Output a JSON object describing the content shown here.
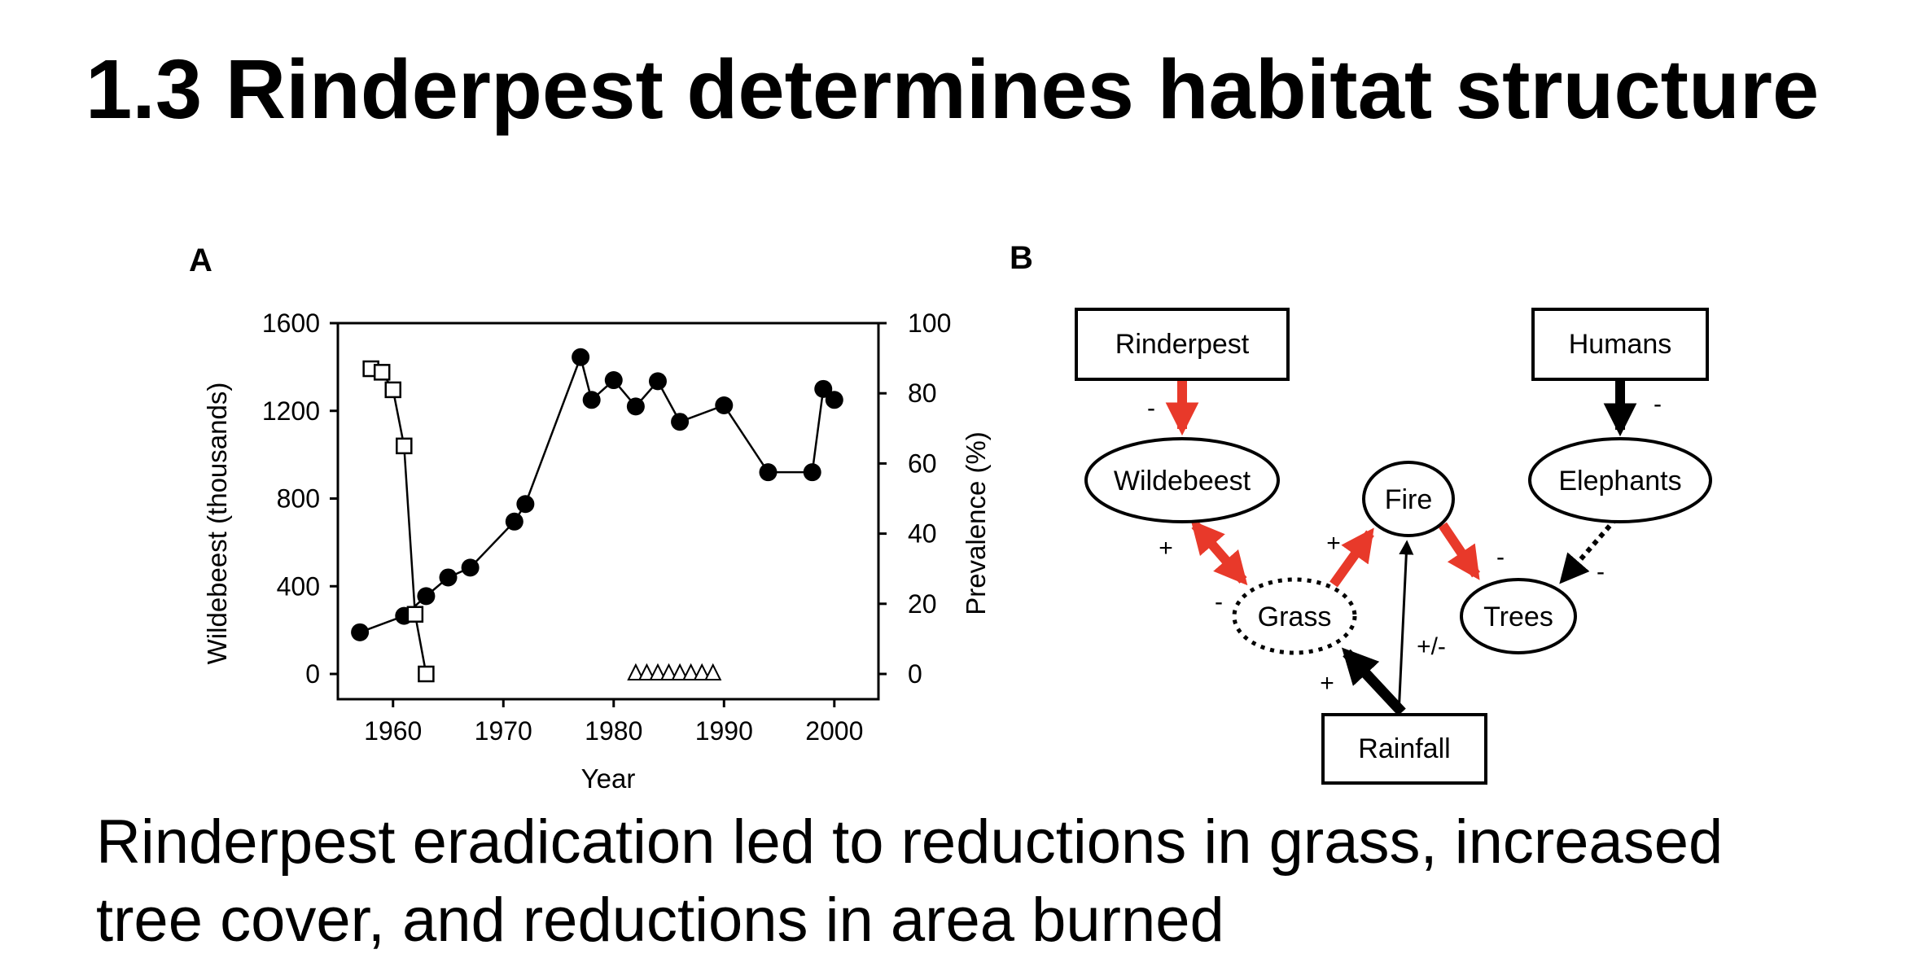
{
  "slide": {
    "title": "1.3 Rinderpest determines habitat structure",
    "caption_line_1": "Rinderpest eradication led to reductions in grass, increased",
    "caption_line_2": "tree cover, and reductions in area burned"
  },
  "chart_data": [
    {
      "panel": "A",
      "type": "line",
      "xlabel": "Year",
      "ylabel": "Wildebeest (thousands)",
      "y2label": "Prevalence (%)",
      "xlim": [
        1955,
        2004
      ],
      "ylim": [
        0,
        1600
      ],
      "y2lim": [
        0,
        100
      ],
      "x_ticks": [
        1960,
        1970,
        1980,
        1990,
        2000
      ],
      "y_ticks": [
        0,
        400,
        800,
        1200,
        1600
      ],
      "y2_ticks": [
        0,
        20,
        40,
        60,
        80,
        100
      ],
      "grid": false,
      "series": [
        {
          "axis": "left",
          "marker": "filled-circle",
          "x": [
            1957,
            1961,
            1963,
            1965,
            1967,
            1971,
            1972,
            1977,
            1978,
            1980,
            1982,
            1984,
            1986,
            1990,
            1994,
            1998,
            1999,
            2000
          ],
          "y": [
            190,
            265,
            355,
            440,
            485,
            695,
            775,
            1445,
            1250,
            1340,
            1220,
            1335,
            1150,
            1225,
            920,
            920,
            1300,
            1250
          ]
        },
        {
          "axis": "right",
          "marker": "open-square",
          "x": [
            1958,
            1959,
            1960,
            1961,
            1962,
            1963
          ],
          "y": [
            87,
            86,
            81,
            65,
            17,
            0
          ]
        },
        {
          "axis": "right",
          "marker": "open-triangle",
          "x": [
            1982,
            1983,
            1984,
            1985,
            1986,
            1987,
            1988,
            1989
          ],
          "y": [
            0,
            0,
            0,
            0,
            0,
            0,
            0,
            0
          ]
        }
      ]
    },
    {
      "panel": "B",
      "type": "diagram",
      "nodes": [
        {
          "id": "rinderpest",
          "label": "Rinderpest",
          "shape": "box"
        },
        {
          "id": "humans",
          "label": "Humans",
          "shape": "box"
        },
        {
          "id": "wildebeest",
          "label": "Wildebeest",
          "shape": "ellipse"
        },
        {
          "id": "fire",
          "label": "Fire",
          "shape": "ellipse"
        },
        {
          "id": "elephants",
          "label": "Elephants",
          "shape": "ellipse"
        },
        {
          "id": "grass",
          "label": "Grass",
          "shape": "dotted-ellipse"
        },
        {
          "id": "trees",
          "label": "Trees",
          "shape": "ellipse"
        },
        {
          "id": "rainfall",
          "label": "Rainfall",
          "shape": "box"
        }
      ],
      "edges": [
        {
          "from": "rinderpest",
          "to": "wildebeest",
          "sign": "-",
          "color": "#e8392a",
          "style": "solid"
        },
        {
          "from": "wildebeest",
          "to": "grass",
          "sign_from": "+",
          "sign_to": "-",
          "color": "#e8392a",
          "style": "double-headed"
        },
        {
          "from": "grass",
          "to": "fire",
          "sign": "+",
          "color": "#e8392a",
          "style": "solid"
        },
        {
          "from": "fire",
          "to": "trees",
          "sign": "-",
          "color": "#e8392a",
          "style": "solid"
        },
        {
          "from": "humans",
          "to": "elephants",
          "sign": "-",
          "color": "#000000",
          "style": "solid"
        },
        {
          "from": "elephants",
          "to": "trees",
          "sign": "-",
          "color": "#000000",
          "style": "dotted"
        },
        {
          "from": "rainfall",
          "to": "grass",
          "sign": "+",
          "color": "#000000",
          "style": "solid"
        },
        {
          "from": "rainfall",
          "to": "fire",
          "sign": "+/-",
          "color": "#000000",
          "style": "thin"
        }
      ]
    }
  ]
}
